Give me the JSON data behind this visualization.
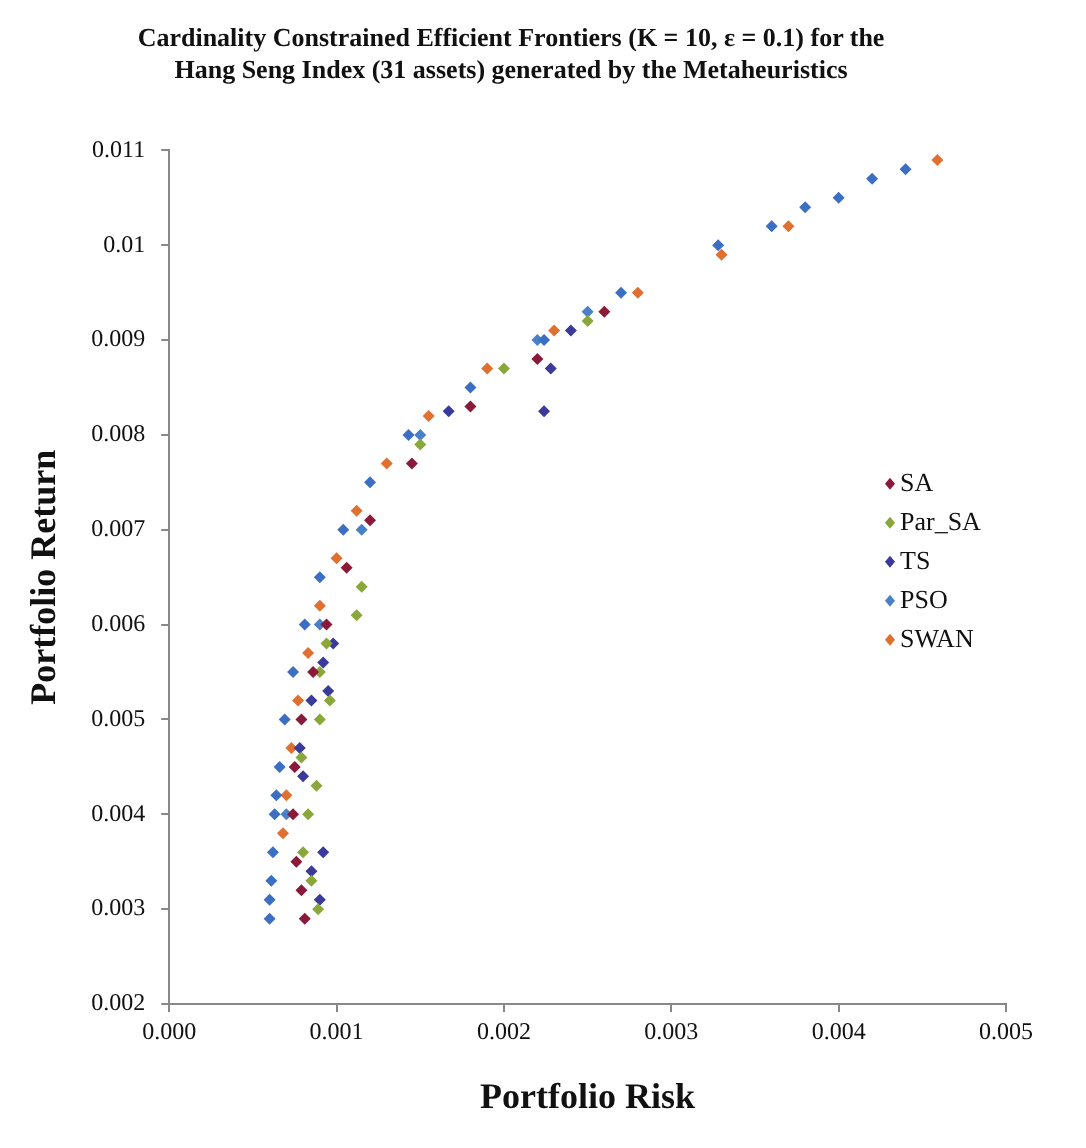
{
  "chart_data": {
    "type": "scatter",
    "title": "Cardinality Constrained Efficient Frontiers (K = 10, ε = 0.1) for the\nHang Seng Index (31 assets) generated by the Metaheuristics",
    "xlabel": "Portfolio Risk",
    "ylabel": "Portfolio Return",
    "xlim": [
      0,
      0.005
    ],
    "xticks": [
      {
        "value": 0,
        "label": "0.000"
      },
      {
        "value": 0.001,
        "label": "0.001"
      },
      {
        "value": 0.002,
        "label": "0.002"
      },
      {
        "value": 0.003,
        "label": "0.003"
      },
      {
        "value": 0.004,
        "label": "0.004"
      },
      {
        "value": 0.005,
        "label": "0.005"
      }
    ],
    "ylim": [
      0.002,
      0.011
    ],
    "yticks": [
      0.002,
      0.003,
      0.004,
      0.005,
      0.006,
      0.007,
      0.008,
      0.009,
      0.01,
      0.011
    ],
    "grid": false,
    "legend": "right",
    "marker": "diamond",
    "series": [
      {
        "color": "#3c6fc4",
        "x": [
          0.0006,
          0.0006,
          0.00061,
          0.00062,
          0.00063,
          0.00064,
          0.00066,
          0.00069,
          0.00074,
          0.00081,
          0.0009,
          0.00104,
          0.0012,
          0.00143,
          0.0018,
          0.00224,
          0.0027,
          0.00328,
          0.0036,
          0.0038,
          0.004,
          0.0042,
          0.0044
        ],
        "values": [
          0.0029,
          0.0031,
          0.0033,
          0.0036,
          0.004,
          0.0042,
          0.0045,
          0.005,
          0.0055,
          0.006,
          0.0065,
          0.007,
          0.0075,
          0.008,
          0.0085,
          0.009,
          0.0095,
          0.01,
          0.0102,
          0.0104,
          0.0105,
          0.0107,
          0.0108
        ]
      },
      {
        "name": "SA",
        "color": "#8b1a3a",
        "x": [
          0.00081,
          0.00079,
          0.00076,
          0.00074,
          0.00075,
          0.00079,
          0.00086,
          0.00094,
          0.00106,
          0.0012,
          0.00145,
          0.0018,
          0.0022,
          0.0026
        ],
        "values": [
          0.0029,
          0.0032,
          0.0035,
          0.004,
          0.0045,
          0.005,
          0.0055,
          0.006,
          0.0066,
          0.0071,
          0.0077,
          0.0083,
          0.0088,
          0.0093
        ]
      },
      {
        "name": "Par_SA",
        "color": "#8aa83a",
        "x": [
          0.00089,
          0.00085,
          0.0008,
          0.00083,
          0.00088,
          0.00079,
          0.0009,
          0.00096,
          0.0009,
          0.00094,
          0.00112,
          0.00115,
          0.0015,
          0.002,
          0.0025
        ],
        "values": [
          0.003,
          0.0033,
          0.0036,
          0.004,
          0.0043,
          0.0046,
          0.005,
          0.0052,
          0.0055,
          0.0058,
          0.0061,
          0.0064,
          0.0079,
          0.0087,
          0.0092
        ]
      },
      {
        "name": "TS",
        "color": "#3a3a9a",
        "x": [
          0.0009,
          0.00085,
          0.00092,
          0.0008,
          0.00078,
          0.00085,
          0.00095,
          0.00092,
          0.00098,
          0.00167,
          0.00224,
          0.00228,
          0.0024
        ],
        "values": [
          0.0031,
          0.0034,
          0.0036,
          0.0044,
          0.0047,
          0.0052,
          0.0053,
          0.0056,
          0.0058,
          0.00825,
          0.00825,
          0.0087,
          0.0091
        ]
      },
      {
        "name": "PSO",
        "color": "#4a80c8",
        "x": [
          0.0007,
          0.0009,
          0.00115,
          0.0015,
          0.0022,
          0.0025
        ],
        "values": [
          0.004,
          0.006,
          0.007,
          0.008,
          0.009,
          0.0093
        ]
      },
      {
        "name": "SWAN",
        "color": "#e07030",
        "x": [
          0.00068,
          0.0007,
          0.00073,
          0.00077,
          0.00083,
          0.0009,
          0.001,
          0.00112,
          0.0013,
          0.00155,
          0.0019,
          0.0023,
          0.0028,
          0.0033,
          0.0037,
          0.00459
        ],
        "values": [
          0.0038,
          0.0042,
          0.0047,
          0.0052,
          0.0057,
          0.0062,
          0.0067,
          0.0072,
          0.0077,
          0.0082,
          0.0087,
          0.0091,
          0.0095,
          0.0099,
          0.0102,
          0.0109
        ]
      }
    ]
  }
}
